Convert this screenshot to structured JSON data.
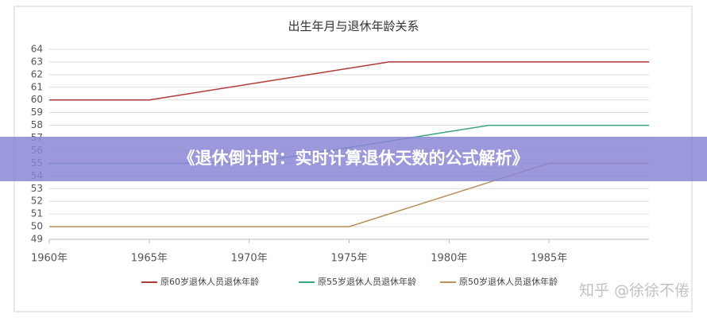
{
  "chart_data": {
    "type": "line",
    "title": "出生年月与退休年龄关系",
    "xlim": [
      1960,
      1990
    ],
    "xticks": [
      {
        "value": 1960,
        "label": "1960年"
      },
      {
        "value": 1965,
        "label": "1965年"
      },
      {
        "value": 1970,
        "label": "1970年"
      },
      {
        "value": 1975,
        "label": "1975年"
      },
      {
        "value": 1980,
        "label": "1980年"
      },
      {
        "value": 1985,
        "label": "1985年"
      }
    ],
    "ylim": [
      49,
      64
    ],
    "yticks": [
      49,
      50,
      51,
      52,
      53,
      54,
      55,
      56,
      57,
      58,
      59,
      60,
      61,
      62,
      63,
      64
    ],
    "grid": true,
    "legend": "bottom",
    "series": [
      {
        "name": "原60岁退休人员退休年龄",
        "color": "#b23a3a",
        "x": [
          1960,
          1965,
          1977,
          1990
        ],
        "values": [
          60,
          60,
          63,
          63
        ]
      },
      {
        "name": "原55岁退休人员退休年龄",
        "color": "#3aa57a",
        "x": [
          1960,
          1970,
          1982,
          1990
        ],
        "values": [
          55,
          55,
          58,
          58
        ]
      },
      {
        "name": "原50岁退休人员退休年龄",
        "color": "#b8905a",
        "x": [
          1960,
          1975,
          1985,
          1990
        ],
        "values": [
          50,
          50,
          55,
          55
        ]
      }
    ]
  },
  "banner": "《退休倒计时：实时计算退休天数的公式解析》",
  "watermark": "知乎 @徐徐不倦"
}
